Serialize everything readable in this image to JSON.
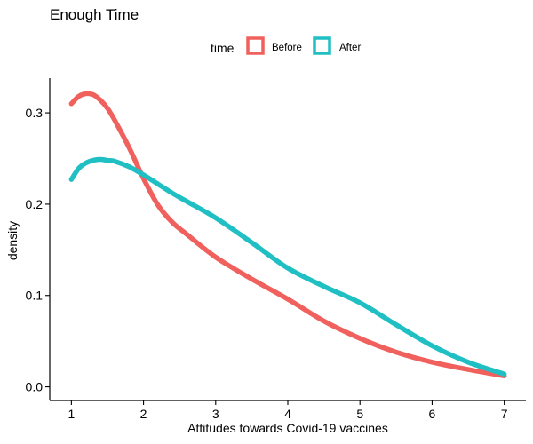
{
  "chart_data": {
    "type": "line",
    "title": "Enough Time",
    "xlabel": "Attitudes towards Covid-19 vaccines",
    "ylabel": "density",
    "xlim": [
      0.7,
      7.3
    ],
    "ylim": [
      -0.015,
      0.338
    ],
    "x_ticks": [
      1,
      2,
      3,
      4,
      5,
      6,
      7
    ],
    "y_ticks": [
      0.0,
      0.1,
      0.2,
      0.3
    ],
    "y_tick_labels": [
      "0.0",
      "0.1",
      "0.2",
      "0.3"
    ],
    "grid": false,
    "legend": {
      "title": "time",
      "position": "top"
    },
    "series": [
      {
        "name": "Before",
        "color": "#F0605D",
        "x": [
          1.0,
          1.1,
          1.2,
          1.3,
          1.4,
          1.5,
          1.6,
          1.8,
          2.0,
          2.2,
          2.4,
          2.6,
          3.0,
          3.5,
          4.0,
          4.5,
          5.0,
          5.5,
          6.0,
          6.5,
          7.0
        ],
        "y": [
          0.31,
          0.318,
          0.321,
          0.32,
          0.314,
          0.305,
          0.292,
          0.262,
          0.228,
          0.199,
          0.18,
          0.167,
          0.142,
          0.118,
          0.096,
          0.072,
          0.053,
          0.038,
          0.027,
          0.019,
          0.012
        ]
      },
      {
        "name": "After",
        "color": "#1FBFC4",
        "x": [
          1.0,
          1.1,
          1.2,
          1.3,
          1.4,
          1.5,
          1.6,
          1.8,
          2.0,
          2.2,
          2.4,
          2.6,
          3.0,
          3.5,
          4.0,
          4.5,
          5.0,
          5.5,
          6.0,
          6.5,
          7.0
        ],
        "y": [
          0.227,
          0.239,
          0.245,
          0.248,
          0.249,
          0.248,
          0.247,
          0.241,
          0.232,
          0.222,
          0.212,
          0.203,
          0.185,
          0.158,
          0.13,
          0.11,
          0.092,
          0.068,
          0.045,
          0.027,
          0.014
        ]
      }
    ]
  }
}
